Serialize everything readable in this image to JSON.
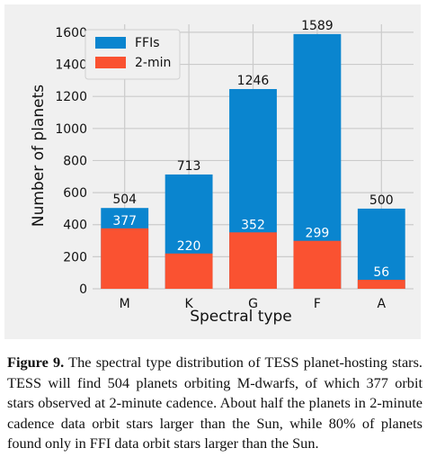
{
  "chart_data": {
    "type": "bar",
    "stacked": "overlay",
    "categories": [
      "M",
      "K",
      "G",
      "F",
      "A"
    ],
    "series": [
      {
        "name": "FFIs",
        "color": "#0a85cf",
        "values": [
          504,
          713,
          1246,
          1589,
          500
        ]
      },
      {
        "name": "2-min",
        "color": "#fa5231",
        "values": [
          377,
          220,
          352,
          299,
          56
        ]
      }
    ],
    "xlabel": "Spectral type",
    "ylabel": "Number of planets",
    "ylim": [
      0,
      1650
    ],
    "yticks": [
      "0",
      "200",
      "400",
      "600",
      "800",
      "1000",
      "1200",
      "1400",
      "1600"
    ],
    "grid": true,
    "legend_position": "top-left",
    "background": "#f0f0f0",
    "grid_color": "#cbcbcb"
  },
  "caption": {
    "label": "Figure 9.",
    "text": "The spectral type distribution of TESS planet-hosting stars. TESS will find 504 planets orbiting M-dwarfs, of which 377 orbit stars observed at 2-minute cadence. About half the planets in 2-minute cadence data orbit stars larger than the Sun, while 80% of planets found only in FFI data orbit stars larger than the Sun."
  }
}
